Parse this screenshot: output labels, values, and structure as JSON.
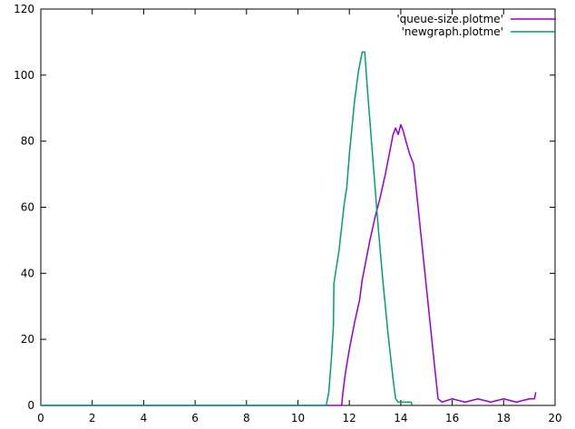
{
  "chart_data": {
    "type": "line",
    "title": "",
    "xlabel": "",
    "ylabel": "",
    "xlim": [
      0,
      20
    ],
    "ylim": [
      0,
      120
    ],
    "x_ticks": [
      0,
      2,
      4,
      6,
      8,
      10,
      12,
      14,
      16,
      18,
      20
    ],
    "y_ticks": [
      0,
      20,
      40,
      60,
      80,
      100,
      120
    ],
    "grid": false,
    "legend_position": "top-right",
    "series": [
      {
        "name": "'queue-size.plotme'",
        "color": "#9400d3",
        "points": [
          [
            0,
            0
          ],
          [
            11.5,
            0
          ],
          [
            11.7,
            0
          ],
          [
            11.75,
            4
          ],
          [
            11.85,
            10
          ],
          [
            12.0,
            17
          ],
          [
            12.2,
            25
          ],
          [
            12.4,
            32
          ],
          [
            12.5,
            38
          ],
          [
            12.6,
            42
          ],
          [
            12.8,
            50
          ],
          [
            13.0,
            57
          ],
          [
            13.2,
            63
          ],
          [
            13.4,
            70
          ],
          [
            13.55,
            76
          ],
          [
            13.7,
            82
          ],
          [
            13.8,
            84
          ],
          [
            13.9,
            82
          ],
          [
            14.0,
            85
          ],
          [
            14.1,
            83
          ],
          [
            14.2,
            80
          ],
          [
            14.35,
            76
          ],
          [
            14.5,
            73
          ],
          [
            14.7,
            58
          ],
          [
            14.9,
            43
          ],
          [
            15.1,
            28
          ],
          [
            15.3,
            13
          ],
          [
            15.45,
            2
          ],
          [
            15.6,
            1
          ],
          [
            16.0,
            2
          ],
          [
            16.5,
            1
          ],
          [
            17.0,
            2
          ],
          [
            17.5,
            1
          ],
          [
            18.0,
            2
          ],
          [
            18.5,
            1
          ],
          [
            19.0,
            2
          ],
          [
            19.2,
            2
          ],
          [
            19.25,
            4
          ]
        ]
      },
      {
        "name": "'newgraph.plotme'",
        "color": "#009e73",
        "points": [
          [
            0,
            0
          ],
          [
            11.1,
            0
          ],
          [
            11.2,
            4
          ],
          [
            11.3,
            14
          ],
          [
            11.38,
            24
          ],
          [
            11.4,
            37
          ],
          [
            11.6,
            47
          ],
          [
            11.8,
            61
          ],
          [
            11.9,
            66
          ],
          [
            12.0,
            76
          ],
          [
            12.2,
            92
          ],
          [
            12.35,
            101
          ],
          [
            12.5,
            107
          ],
          [
            12.6,
            107
          ],
          [
            12.7,
            96
          ],
          [
            12.9,
            76
          ],
          [
            13.1,
            56
          ],
          [
            13.3,
            38
          ],
          [
            13.5,
            22
          ],
          [
            13.7,
            8
          ],
          [
            13.8,
            2
          ],
          [
            13.9,
            1
          ],
          [
            14.4,
            1
          ],
          [
            14.45,
            0
          ]
        ]
      }
    ]
  }
}
